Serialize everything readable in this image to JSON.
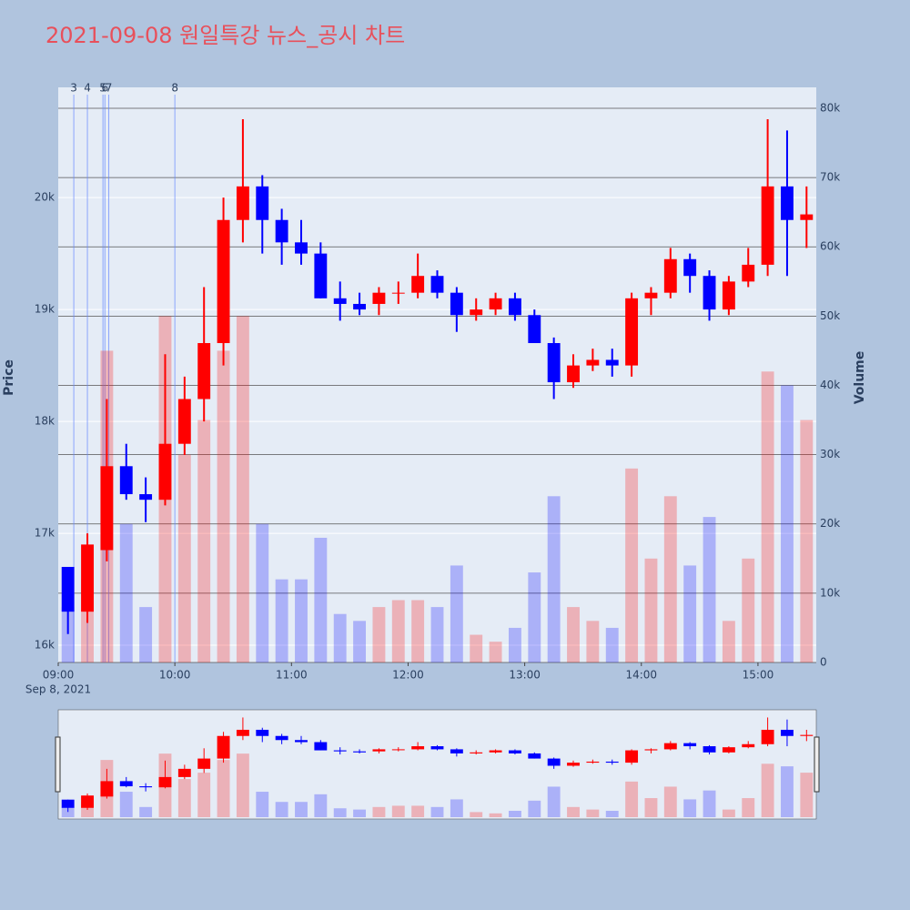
{
  "chart_data": {
    "type": "candlestick",
    "title": "2021-09-08 원일특강 뉴스_공시 차트",
    "y_label": "Price",
    "y2_label": "Volume",
    "date_label": "Sep 8, 2021",
    "increasing_color": "#ff0000",
    "decreasing_color": "#0000ff",
    "xlim": [
      "09:00",
      "15:30"
    ],
    "xticks": [
      "09:00",
      "10:00",
      "11:00",
      "12:00",
      "13:00",
      "14:00",
      "15:00"
    ],
    "ylim": [
      15846,
      20985
    ],
    "yticks": [
      {
        "value": 16000,
        "label": "16k"
      },
      {
        "value": 17000,
        "label": "17k"
      },
      {
        "value": 18000,
        "label": "18k"
      },
      {
        "value": 19000,
        "label": "19k"
      },
      {
        "value": 20000,
        "label": "20k"
      }
    ],
    "y2lim": [
      0,
      83020
    ],
    "y2ticks": [
      0,
      {
        "value": 10000,
        "label": "10k"
      },
      {
        "value": 20000,
        "label": "20k"
      },
      {
        "value": 30000,
        "label": "30k"
      },
      {
        "value": 40000,
        "label": "40k"
      },
      {
        "value": 50000,
        "label": "50k"
      },
      {
        "value": 60000,
        "label": "60k"
      },
      {
        "value": 70000,
        "label": "70k"
      },
      {
        "value": 80000,
        "label": "80k"
      }
    ],
    "news": [
      {
        "label": "3",
        "x": "09:08"
      },
      {
        "label": "4",
        "x": "09:15"
      },
      {
        "label": "5",
        "x": "09:23"
      },
      {
        "label": "6",
        "x": "09:24"
      },
      {
        "label": "7",
        "x": "09:26"
      },
      {
        "label": "8",
        "x": "10:00"
      }
    ],
    "x": [
      "09:00",
      "09:10",
      "09:20",
      "09:30",
      "09:40",
      "09:50",
      "10:00",
      "10:10",
      "10:20",
      "10:30",
      "10:40",
      "10:50",
      "11:00",
      "11:10",
      "11:20",
      "11:30",
      "11:40",
      "11:50",
      "12:00",
      "12:10",
      "12:20",
      "12:30",
      "12:40",
      "12:50",
      "13:00",
      "13:10",
      "13:20",
      "13:30",
      "13:40",
      "13:50",
      "14:00",
      "14:10",
      "14:20",
      "14:30",
      "14:40",
      "14:50",
      "15:00",
      "15:10",
      "15:20"
    ],
    "open": [
      16700,
      16300,
      16850,
      17600,
      17350,
      17300,
      17800,
      18200,
      18700,
      19800,
      20100,
      19800,
      19600,
      19500,
      19100,
      19050,
      19050,
      19150,
      19150,
      19300,
      19150,
      18950,
      19000,
      19100,
      18950,
      18700,
      18350,
      18500,
      18550,
      18500,
      19100,
      19150,
      19450,
      19300,
      19000,
      19250,
      19400,
      20100,
      19800
    ],
    "high": [
      16700,
      17000,
      18200,
      17800,
      17500,
      18600,
      18400,
      19200,
      20000,
      20700,
      20200,
      19900,
      19800,
      19600,
      19250,
      19150,
      19200,
      19250,
      19500,
      19350,
      19200,
      19100,
      19150,
      19150,
      19000,
      18750,
      18600,
      18650,
      18650,
      19150,
      19200,
      19550,
      19500,
      19350,
      19300,
      19550,
      20700,
      20600,
      20100
    ],
    "low": [
      16100,
      16200,
      16750,
      17300,
      17100,
      17250,
      17700,
      18000,
      18500,
      19600,
      19500,
      19400,
      19400,
      19100,
      18900,
      18950,
      18950,
      19050,
      19100,
      19100,
      18800,
      18900,
      18950,
      18900,
      18700,
      18200,
      18300,
      18450,
      18400,
      18400,
      18950,
      19100,
      19150,
      18900,
      18950,
      19200,
      19300,
      19300,
      19550
    ],
    "close": [
      16300,
      16900,
      17600,
      17350,
      17300,
      17800,
      18200,
      18700,
      19800,
      20100,
      19800,
      19600,
      19500,
      19100,
      19050,
      19000,
      19150,
      19150,
      19300,
      19150,
      18950,
      19000,
      19100,
      18950,
      18700,
      18350,
      18500,
      18550,
      18500,
      19100,
      19150,
      19450,
      19300,
      19000,
      19250,
      19400,
      20100,
      19800,
      19850
    ],
    "volume": [
      8000,
      12000,
      45000,
      20000,
      8000,
      50000,
      30000,
      35000,
      45000,
      50000,
      20000,
      12000,
      12000,
      18000,
      7000,
      6000,
      8000,
      9000,
      9000,
      8000,
      14000,
      4000,
      3000,
      5000,
      13000,
      24000,
      8000,
      6000,
      5000,
      28000,
      15000,
      24000,
      14000,
      21000,
      6000,
      15000,
      42000,
      40000,
      35000
    ]
  }
}
